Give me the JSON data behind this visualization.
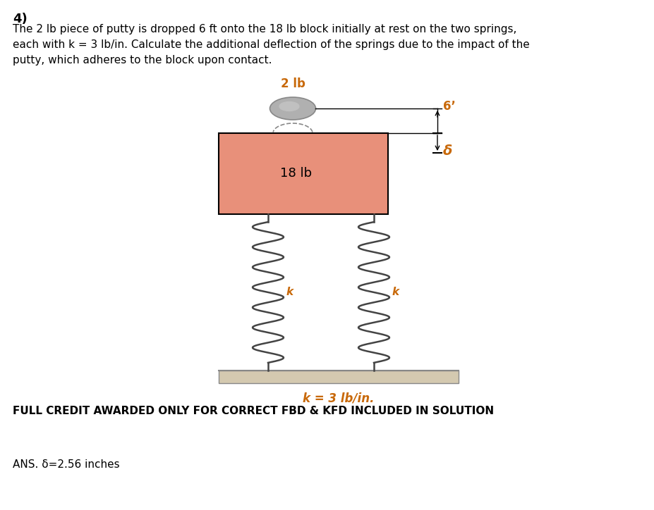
{
  "title_number": "4)",
  "problem_text_line1": "The 2 lb piece of putty is dropped 6 ft onto the 18 lb block initially at rest on the two springs,",
  "problem_text_line2": "each with k = 3 lb/in. Calculate the additional deflection of the springs due to the impact of the",
  "problem_text_line3": "putty, which adheres to the block upon contact.",
  "full_credit_text": "FULL CREDIT AWARDED ONLY FOR CORRECT FBD & KFD INCLUDED IN SOLUTION",
  "ans_text": "ANS. δ=2.56 inches",
  "putty_label": "2 lb",
  "block_label": "18 lb",
  "spring_label": "k = 3 lb/in.",
  "height_label": "6’",
  "delta_label": "δ",
  "k_label": "k",
  "block_color": "#e8907a",
  "bg_color": "#ffffff",
  "text_color": "#000000",
  "orange_color": "#c8690a",
  "spring_color": "#444444",
  "putty_color": "#aaaaaa",
  "ground_color": "#d4c9b0"
}
